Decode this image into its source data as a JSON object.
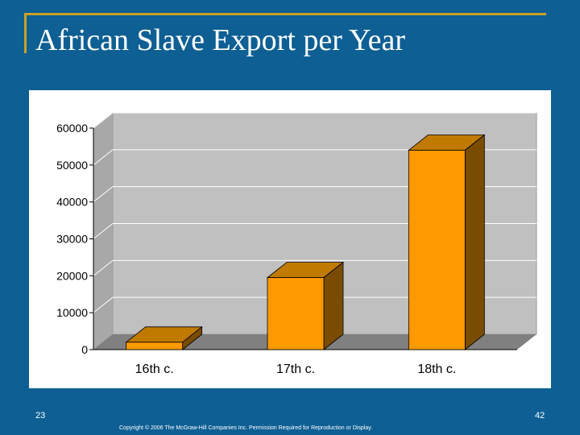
{
  "slide": {
    "title": "African Slave Export per Year",
    "left_number": "23",
    "right_number": "42",
    "copyright": "Copyright © 2006 The McGraw-Hill Companies Inc. Permission Required for Reproduction or Display."
  },
  "colors": {
    "background": "#0d5f94",
    "frame": "#c9a227",
    "bar_front": "#ff9900",
    "bar_top": "#c07a00",
    "bar_side": "#7a4c00",
    "plot_wall": "#c0c0c0",
    "plot_floor": "#808080"
  },
  "chart_data": {
    "type": "bar",
    "categories": [
      "16th c.",
      "17th c.",
      "18th c."
    ],
    "values": [
      2000,
      19500,
      54000
    ],
    "ylim": [
      0,
      60000
    ],
    "yticks": [
      "0",
      "10000",
      "20000",
      "30000",
      "40000",
      "50000",
      "60000"
    ],
    "grid": true,
    "legend": "none"
  }
}
